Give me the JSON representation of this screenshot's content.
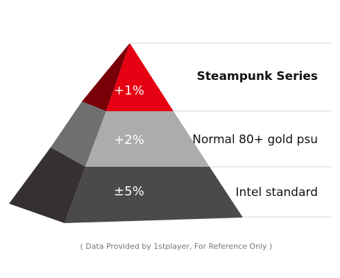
{
  "tiers": [
    {
      "value": "+1%",
      "label": "Steampunk Series",
      "front_color": "#e60012",
      "side_color": "#7a0008"
    },
    {
      "value": "+2%",
      "label": "Normal 80+ gold psu",
      "front_color": "#acacac",
      "side_color": "#6f6f6f"
    },
    {
      "value": "±5%",
      "label": "Intel standard",
      "front_color": "#4b4949",
      "side_color": "#353131"
    }
  ],
  "guide_line_color": "#d5d5d5",
  "footnote": "( Data Provided by 1stplayer, For Reference Only )"
}
